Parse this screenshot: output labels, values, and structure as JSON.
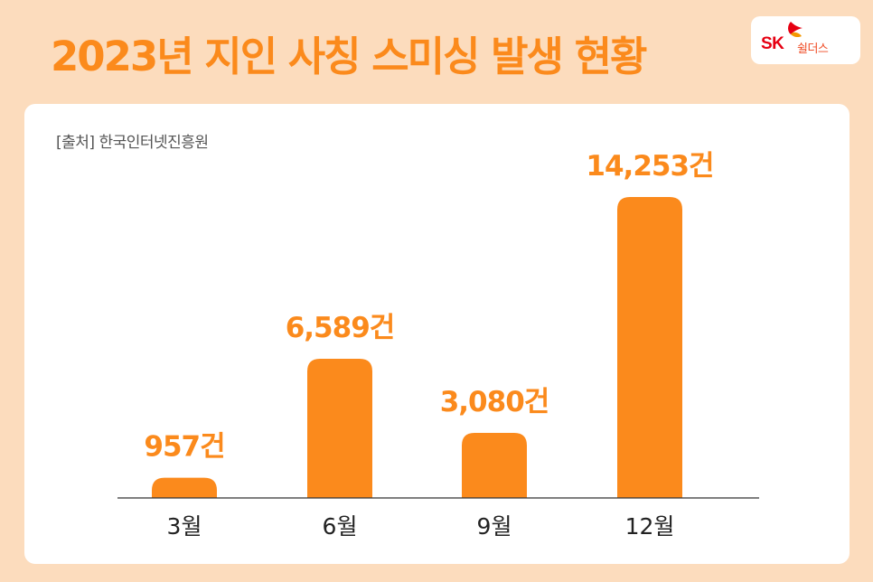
{
  "header": {
    "title": "2023년 지인 사칭 스미싱 발생 현황",
    "logo": {
      "brand": "SK",
      "sub": "쉴더스"
    }
  },
  "source_note": "[출처] 한국인터넷진흥원",
  "colors": {
    "bar": "#fb8a1c",
    "label": "#fb8a1c",
    "background": "#fcdcbd",
    "card": "#ffffff",
    "axis": "#333333"
  },
  "chart_data": {
    "type": "bar",
    "title": "2023년 지인 사칭 스미싱 발생 현황",
    "categories": [
      "3월",
      "6월",
      "9월",
      "12월"
    ],
    "values": [
      957,
      6589,
      3080,
      14253
    ],
    "data_labels": [
      "957건",
      "6,589건",
      "3,080건",
      "14,253건"
    ],
    "xlabel": "",
    "ylabel": "",
    "unit": "건",
    "grid": false,
    "legend": "none"
  }
}
